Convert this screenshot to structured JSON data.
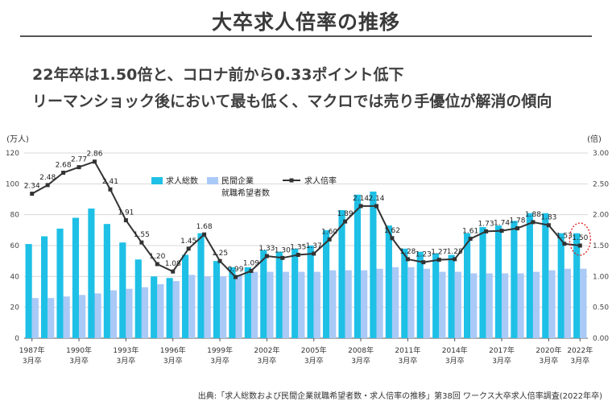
{
  "header": {
    "title": "大卒求人倍率の推移",
    "line1": "22年卒は1.50倍と、コロナ前から0.33ポイント低下",
    "line2": "リーマンショック後において最も低く、マクロでは売り手優位が解消の傾向"
  },
  "source": "出典:「求人総数および民間企業就職希望者数・求人倍率の推移」第38回 ワークス大卒求人倍率調査(2022年卒)",
  "chart_data": {
    "type": "bar",
    "left_unit": "(万人)",
    "right_unit": "(倍)",
    "left_ticks": [
      "120",
      "100",
      "80",
      "60",
      "40",
      "20",
      "0"
    ],
    "right_ticks": [
      "3.00",
      "2.50",
      "2.00",
      "1.50",
      "1.00",
      "0.50",
      "0.00"
    ],
    "left_ylim": [
      0,
      120
    ],
    "right_ylim": [
      0,
      3
    ],
    "legend": {
      "openings": "求人総数",
      "seekers_line1": "民間企業",
      "seekers_line2": "就職希望者数",
      "ratio": "求人倍率"
    },
    "x_tick_labels": [
      {
        "index": 0,
        "year": "1987年",
        "sub": "3月卒"
      },
      {
        "index": 3,
        "year": "1990年",
        "sub": "3月卒"
      },
      {
        "index": 6,
        "year": "1993年",
        "sub": "3月卒"
      },
      {
        "index": 9,
        "year": "1996年",
        "sub": "3月卒"
      },
      {
        "index": 12,
        "year": "1999年",
        "sub": "3月卒"
      },
      {
        "index": 15,
        "year": "2002年",
        "sub": "3月卒"
      },
      {
        "index": 18,
        "year": "2005年",
        "sub": "3月卒"
      },
      {
        "index": 21,
        "year": "2008年",
        "sub": "3月卒"
      },
      {
        "index": 24,
        "year": "2011年",
        "sub": "3月卒"
      },
      {
        "index": 27,
        "year": "2014年",
        "sub": "3月卒"
      },
      {
        "index": 30,
        "year": "2017年",
        "sub": "3月卒"
      },
      {
        "index": 33,
        "year": "2020年",
        "sub": "3月卒"
      },
      {
        "index": 35,
        "year": "2022年",
        "sub": "3月卒"
      }
    ],
    "years": [
      1987,
      1988,
      1989,
      1990,
      1991,
      1992,
      1993,
      1994,
      1995,
      1996,
      1997,
      1998,
      1999,
      2000,
      2001,
      2002,
      2003,
      2004,
      2005,
      2006,
      2007,
      2008,
      2009,
      2010,
      2011,
      2012,
      2013,
      2014,
      2015,
      2016,
      2017,
      2018,
      2019,
      2020,
      2021,
      2022
    ],
    "series": [
      {
        "name": "求人総数",
        "color": "#1ec0e6",
        "values": [
          61,
          66,
          71,
          78,
          84,
          74,
          62,
          51,
          40,
          39,
          54,
          68,
          50,
          46,
          46,
          57,
          56,
          58,
          60,
          70,
          83,
          93,
          95,
          73,
          58,
          56,
          55,
          54,
          68,
          72,
          73,
          76,
          81,
          81,
          68,
          68
        ]
      },
      {
        "name": "民間企業就職希望者数",
        "color": "#a9c9f7",
        "values": [
          26,
          26,
          27,
          28,
          29,
          31,
          32,
          33,
          35,
          37,
          41,
          40,
          40,
          41,
          43,
          43,
          43,
          43,
          43,
          44,
          44,
          44,
          45,
          46,
          46,
          45,
          43,
          43,
          42,
          42,
          42,
          42,
          43,
          44,
          45,
          45
        ]
      },
      {
        "name": "求人倍率",
        "color": "#333333",
        "values": [
          2.34,
          2.48,
          2.68,
          2.77,
          2.86,
          2.41,
          1.91,
          1.55,
          1.2,
          1.08,
          1.45,
          1.68,
          1.25,
          0.99,
          1.09,
          1.33,
          1.3,
          1.35,
          1.37,
          1.6,
          1.89,
          2.14,
          2.14,
          1.62,
          1.28,
          1.23,
          1.27,
          1.28,
          1.61,
          1.73,
          1.74,
          1.78,
          1.88,
          1.83,
          1.53,
          1.5
        ],
        "labels": [
          "2.34",
          "2.48",
          "2.68",
          "2.77",
          "2.86",
          "2.41",
          "1.91",
          "1.55",
          "1.20",
          "1.08",
          "1.45",
          "1.68",
          "1.25",
          "0.99",
          "1.09",
          "1.33",
          "1.30",
          "1.35",
          "1.37",
          "1.60",
          "1.89",
          "2.14",
          "2.14",
          "1.62",
          "1.28",
          "1.23",
          "1.27",
          "1.28",
          "1.61",
          "1.73",
          "1.74",
          "1.78",
          "1.88",
          "1.83",
          "1.53",
          "1.50"
        ]
      }
    ],
    "highlight_index": 35,
    "highlight_color": "#e02020"
  }
}
